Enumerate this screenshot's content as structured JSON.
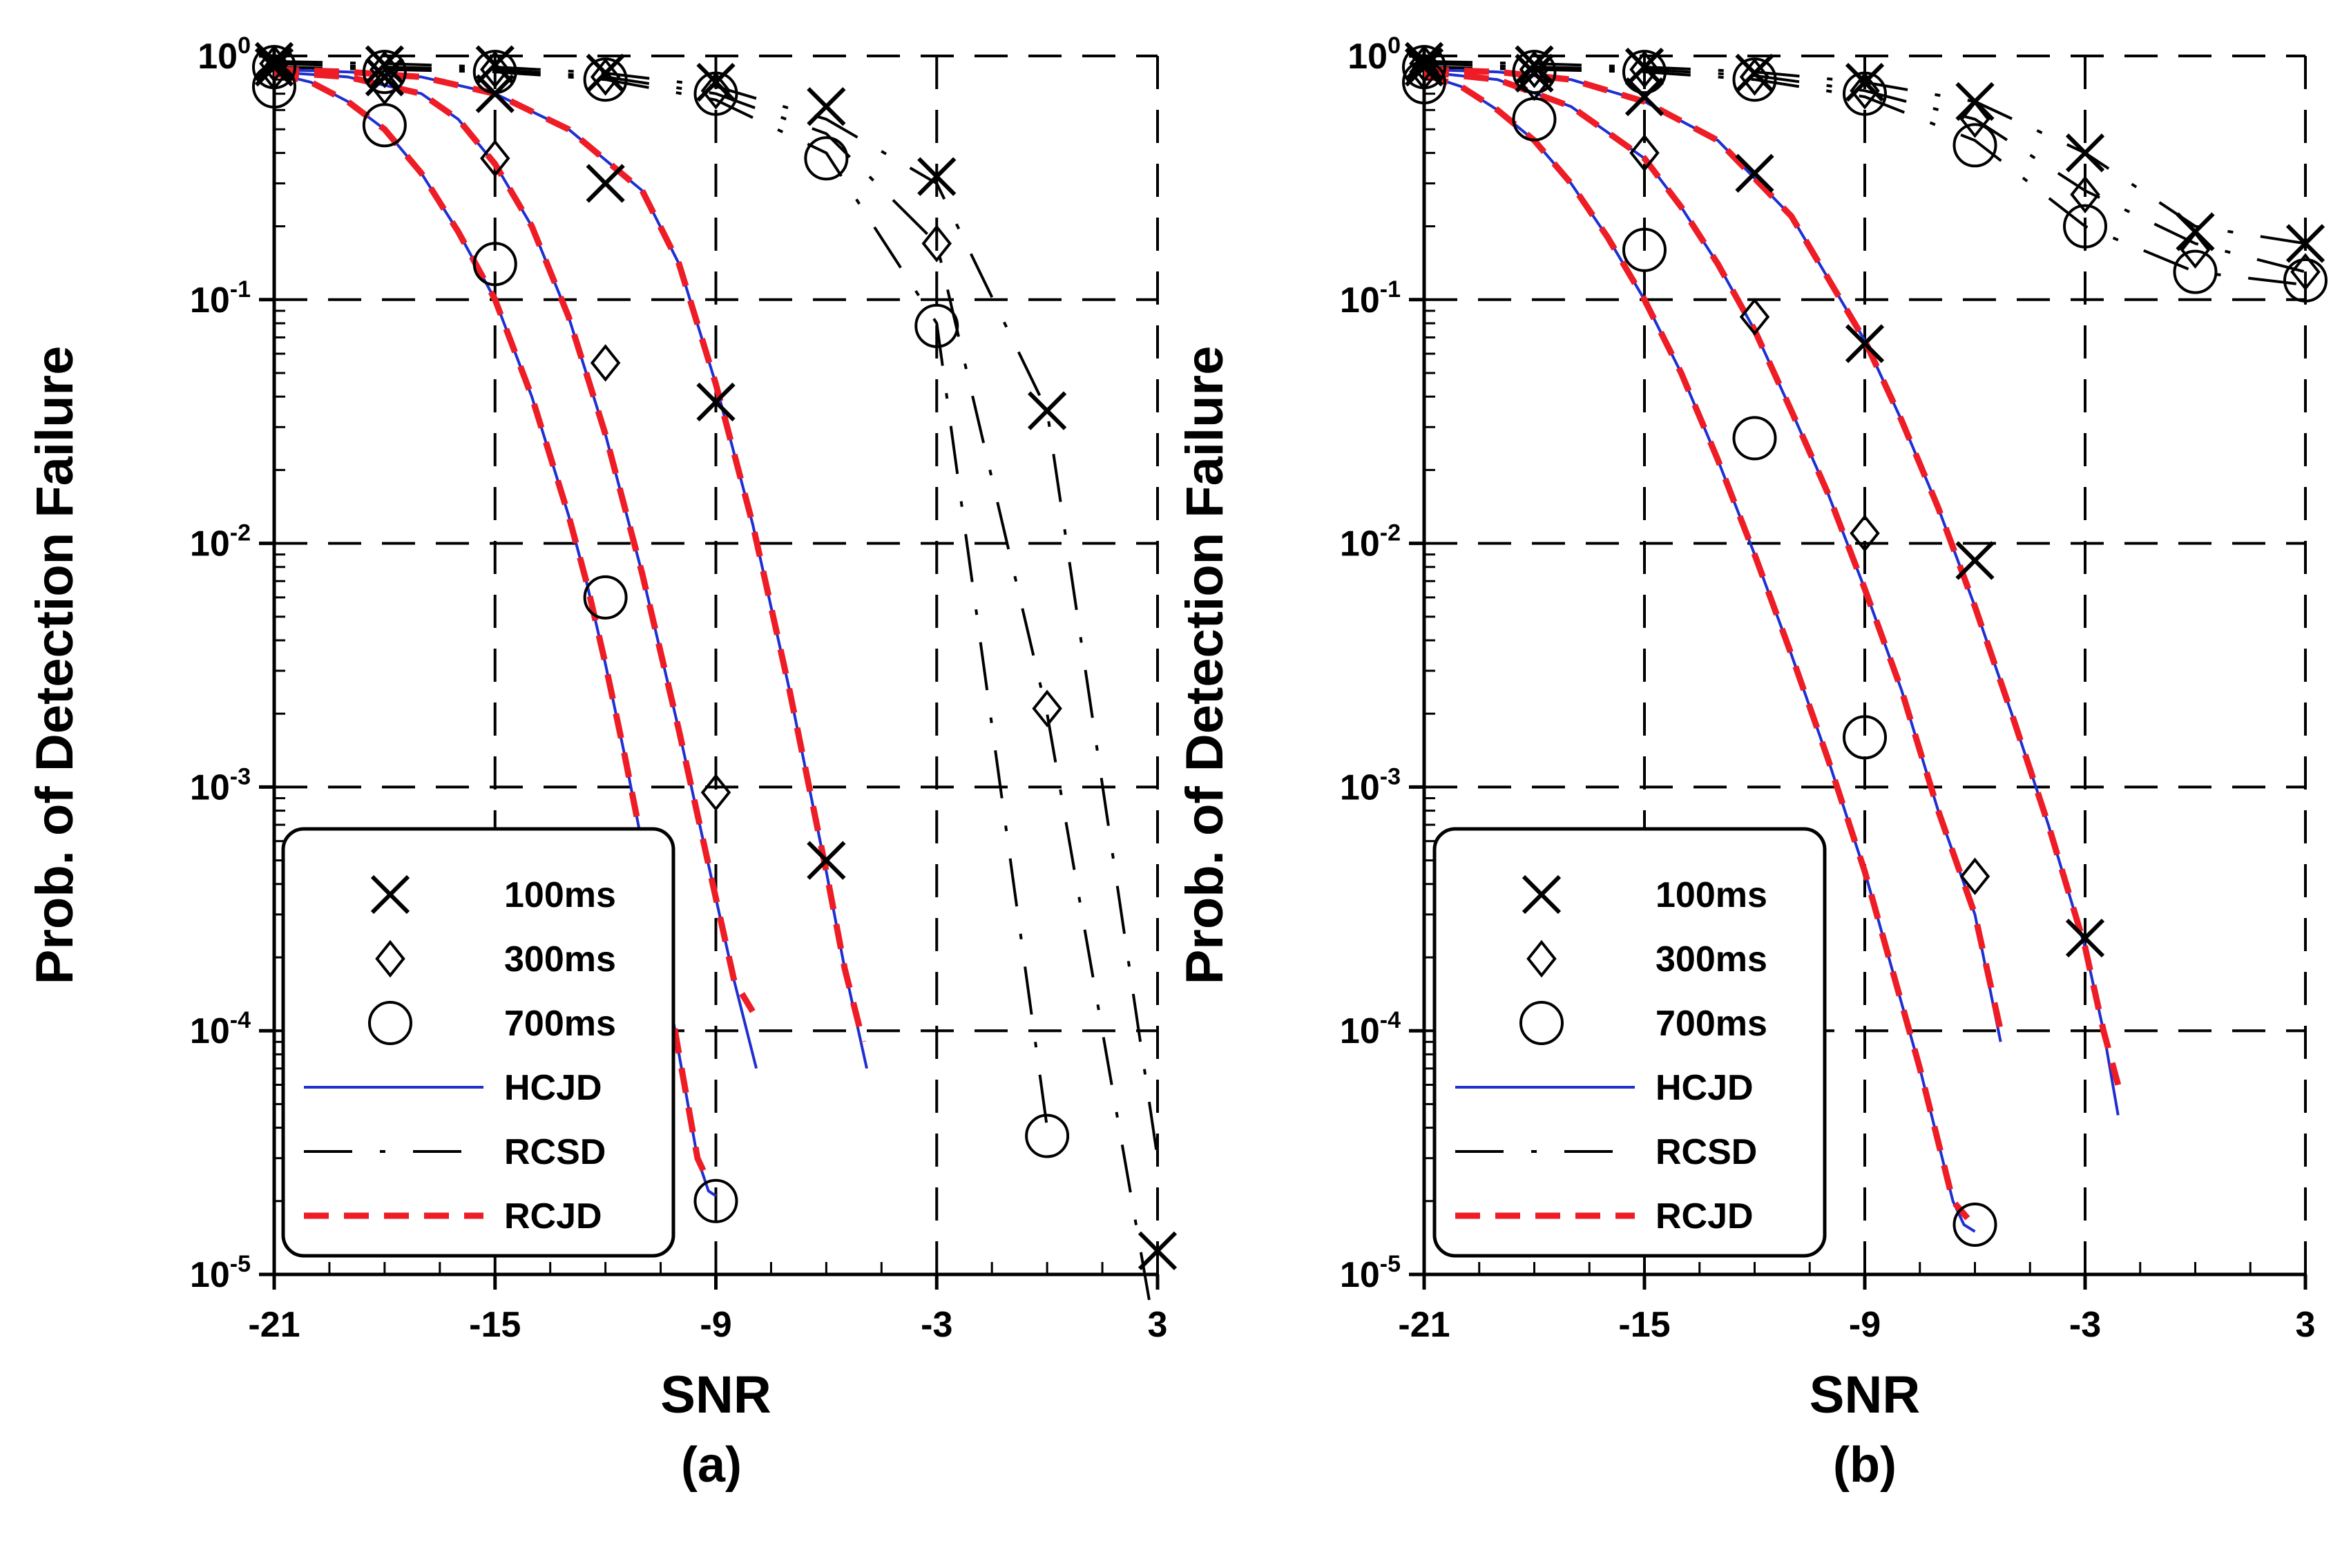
{
  "colors": {
    "hcjd": "#1f2fd0",
    "rcjd": "#ee1c25",
    "rcsd": "#000000",
    "grid": "#000000",
    "markers": "#000000"
  },
  "legend": {
    "markers": [
      {
        "label": "100ms",
        "icon": "cross-marker-icon"
      },
      {
        "label": "300ms",
        "icon": "diamond-marker-icon"
      },
      {
        "label": "700ms",
        "icon": "circle-marker-icon"
      }
    ],
    "lines": [
      {
        "label": "HCJD",
        "style": "solid-blue"
      },
      {
        "label": "RCSD",
        "style": "long-dash-dot-black"
      },
      {
        "label": "RCJD",
        "style": "dashed-red"
      }
    ]
  },
  "chart_data": [
    {
      "type": "line",
      "panel_label": "(a)",
      "xlabel": "SNR",
      "ylabel": "Prob. of Detection Failure",
      "xlim": [
        -21,
        3
      ],
      "ylim": [
        1e-05,
        1
      ],
      "y_scale": "log",
      "xticks": [
        -21,
        -15,
        -9,
        -3,
        3
      ],
      "yticks": [
        {
          "base": "10",
          "exp": "0"
        },
        {
          "base": "10",
          "exp": "-1"
        },
        {
          "base": "10",
          "exp": "-2"
        },
        {
          "base": "10",
          "exp": "-3"
        },
        {
          "base": "10",
          "exp": "-4"
        },
        {
          "base": "10",
          "exp": "-5"
        }
      ],
      "grid": true,
      "legend_position": "bottom-left",
      "series": [
        {
          "name": "HCJD",
          "duration": "100ms",
          "x": [
            -21,
            -19,
            -17,
            -15,
            -13,
            -11,
            -10,
            -9,
            -8,
            -7,
            -6,
            -5.5,
            -4.9
          ],
          "y": [
            0.88,
            0.86,
            0.82,
            0.7,
            0.5,
            0.28,
            0.14,
            0.045,
            0.012,
            0.0025,
            0.00045,
            0.00018,
            7e-05
          ]
        },
        {
          "name": "RCJD",
          "duration": "100ms",
          "x": [
            -21,
            -19,
            -17,
            -15,
            -13,
            -11,
            -10,
            -9,
            -8,
            -7,
            -6,
            -5.5,
            -5.0
          ],
          "y": [
            0.88,
            0.86,
            0.82,
            0.7,
            0.5,
            0.28,
            0.14,
            0.045,
            0.012,
            0.0025,
            0.00045,
            0.00018,
            9e-05
          ]
        },
        {
          "name": "HCJD",
          "duration": "300ms",
          "x": [
            -21,
            -19,
            -17,
            -16,
            -15,
            -14,
            -13,
            -12,
            -11,
            -10,
            -9,
            -8.5,
            -7.9
          ],
          "y": [
            0.86,
            0.82,
            0.7,
            0.55,
            0.36,
            0.2,
            0.085,
            0.028,
            0.0075,
            0.0017,
            0.00035,
            0.00016,
            7e-05
          ]
        },
        {
          "name": "RCJD",
          "duration": "300ms",
          "x": [
            -21,
            -19,
            -17,
            -16,
            -15,
            -14,
            -13,
            -12,
            -11,
            -10,
            -9,
            -8.5,
            -8.0
          ],
          "y": [
            0.86,
            0.82,
            0.7,
            0.55,
            0.36,
            0.2,
            0.085,
            0.028,
            0.0075,
            0.0017,
            0.00035,
            0.00016,
            0.00012
          ]
        },
        {
          "name": "HCJD",
          "duration": "700ms",
          "x": [
            -21,
            -20,
            -19,
            -18,
            -17,
            -16,
            -15,
            -14,
            -13,
            -12.5,
            -12,
            -11.5,
            -11,
            -10.5,
            -10,
            -9.5,
            -9.2,
            -9.0
          ],
          "y": [
            0.85,
            0.78,
            0.65,
            0.5,
            0.33,
            0.19,
            0.1,
            0.04,
            0.013,
            0.0068,
            0.0032,
            0.0014,
            0.00058,
            0.00022,
            8e-05,
            3e-05,
            2.2e-05,
            2.1e-05
          ]
        },
        {
          "name": "RCJD",
          "duration": "700ms",
          "x": [
            -21,
            -20,
            -19,
            -18,
            -17,
            -16,
            -15,
            -14,
            -13,
            -12.5,
            -12,
            -11.5,
            -11,
            -10.5,
            -10,
            -9.5,
            -9.2
          ],
          "y": [
            0.85,
            0.78,
            0.65,
            0.5,
            0.33,
            0.19,
            0.1,
            0.04,
            0.013,
            0.0068,
            0.0032,
            0.0014,
            0.00058,
            0.00022,
            8e-05,
            3e-05,
            2.4e-05
          ]
        },
        {
          "name": "RCSD",
          "duration": "100ms",
          "x": [
            -21,
            -18,
            -15,
            -12,
            -9,
            -6,
            -3,
            0,
            3
          ],
          "y": [
            0.95,
            0.93,
            0.9,
            0.85,
            0.75,
            0.55,
            0.3,
            0.035,
            3e-05
          ]
        },
        {
          "name": "RCSD",
          "duration": "300ms",
          "x": [
            -21,
            -18,
            -15,
            -12,
            -9,
            -6,
            -3,
            0,
            3
          ],
          "y": [
            0.93,
            0.9,
            0.88,
            0.82,
            0.7,
            0.48,
            0.17,
            0.002,
            5e-06
          ]
        },
        {
          "name": "RCSD",
          "duration": "700ms",
          "x": [
            -21,
            -18,
            -15,
            -12,
            -9,
            -6,
            -3,
            0
          ],
          "y": [
            0.9,
            0.88,
            0.86,
            0.8,
            0.66,
            0.4,
            0.08,
            4e-05
          ]
        }
      ],
      "markers": [
        {
          "series": "100ms",
          "x": [
            -21,
            -18,
            -15,
            -12,
            -9,
            -6
          ],
          "y": [
            0.9,
            0.82,
            0.7,
            0.3,
            0.038,
            0.0005
          ]
        },
        {
          "series": "300ms",
          "x": [
            -21,
            -18,
            -15,
            -12,
            -9
          ],
          "y": [
            0.86,
            0.75,
            0.38,
            0.055,
            0.00095
          ]
        },
        {
          "series": "700ms",
          "x": [
            -21,
            -18,
            -15,
            -12,
            -9
          ],
          "y": [
            0.75,
            0.52,
            0.14,
            0.006,
            2e-05
          ]
        },
        {
          "series": "100ms",
          "x": [
            -21,
            -18,
            -15,
            -12,
            -9,
            -6,
            -3,
            0,
            3
          ],
          "y": [
            0.95,
            0.92,
            0.92,
            0.85,
            0.78,
            0.62,
            0.32,
            0.035,
            1.25e-05
          ]
        },
        {
          "series": "300ms",
          "x": [
            -21,
            -18,
            -15,
            -12,
            -9,
            -3,
            0
          ],
          "y": [
            0.93,
            0.88,
            0.88,
            0.82,
            0.72,
            0.17,
            0.0021
          ]
        },
        {
          "series": "700ms",
          "x": [
            -21,
            -18,
            -15,
            -12,
            -9,
            -6,
            -3,
            0
          ],
          "y": [
            0.9,
            0.86,
            0.86,
            0.8,
            0.7,
            0.38,
            0.078,
            3.7e-05
          ]
        }
      ]
    },
    {
      "type": "line",
      "panel_label": "(b)",
      "xlabel": "SNR",
      "ylabel": "Prob. of Detection Failure",
      "xlim": [
        -21,
        3
      ],
      "ylim": [
        1e-05,
        1
      ],
      "y_scale": "log",
      "xticks": [
        -21,
        -15,
        -9,
        -3,
        3
      ],
      "yticks": [
        {
          "base": "10",
          "exp": "0"
        },
        {
          "base": "10",
          "exp": "-1"
        },
        {
          "base": "10",
          "exp": "-2"
        },
        {
          "base": "10",
          "exp": "-3"
        },
        {
          "base": "10",
          "exp": "-4"
        },
        {
          "base": "10",
          "exp": "-5"
        }
      ],
      "grid": true,
      "legend_position": "bottom-left",
      "series": [
        {
          "name": "HCJD",
          "duration": "100ms",
          "x": [
            -21,
            -19,
            -17,
            -15,
            -13,
            -11,
            -9,
            -8,
            -7,
            -6,
            -5,
            -4,
            -3,
            -2.5,
            -2.1
          ],
          "y": [
            0.88,
            0.86,
            0.8,
            0.65,
            0.45,
            0.22,
            0.068,
            0.032,
            0.014,
            0.0055,
            0.002,
            0.0007,
            0.00022,
            0.0001,
            4.5e-05
          ]
        },
        {
          "name": "RCJD",
          "duration": "100ms",
          "x": [
            -21,
            -19,
            -17,
            -15,
            -13,
            -11,
            -9,
            -8,
            -7,
            -6,
            -5,
            -4,
            -3,
            -2.5,
            -2.1
          ],
          "y": [
            0.88,
            0.86,
            0.8,
            0.65,
            0.45,
            0.22,
            0.068,
            0.032,
            0.014,
            0.0055,
            0.002,
            0.0007,
            0.00022,
            0.0001,
            6e-05
          ]
        },
        {
          "name": "HCJD",
          "duration": "300ms",
          "x": [
            -21,
            -19,
            -17,
            -15,
            -14,
            -13,
            -12,
            -11,
            -10,
            -9,
            -8,
            -7,
            -6,
            -5.3
          ],
          "y": [
            0.86,
            0.8,
            0.62,
            0.38,
            0.24,
            0.14,
            0.075,
            0.035,
            0.016,
            0.0065,
            0.0025,
            0.0008,
            0.0003,
            9e-05
          ]
        },
        {
          "name": "RCJD",
          "duration": "300ms",
          "x": [
            -21,
            -19,
            -17,
            -15,
            -14,
            -13,
            -12,
            -11,
            -10,
            -9,
            -8,
            -7,
            -6,
            -5.3
          ],
          "y": [
            0.86,
            0.8,
            0.62,
            0.38,
            0.24,
            0.14,
            0.075,
            0.035,
            0.016,
            0.0065,
            0.0025,
            0.0008,
            0.0003,
            0.0001
          ]
        },
        {
          "name": "HCJD",
          "duration": "700ms",
          "x": [
            -21,
            -20,
            -19,
            -18,
            -17,
            -16,
            -15,
            -14,
            -13,
            -12,
            -11,
            -10,
            -9,
            -8,
            -7.5,
            -7,
            -6.6,
            -6.3,
            -6.0
          ],
          "y": [
            0.84,
            0.75,
            0.6,
            0.45,
            0.3,
            0.18,
            0.1,
            0.05,
            0.022,
            0.009,
            0.0035,
            0.0013,
            0.00045,
            0.00013,
            7e-05,
            3.5e-05,
            2e-05,
            1.6e-05,
            1.5e-05
          ]
        },
        {
          "name": "RCJD",
          "duration": "700ms",
          "x": [
            -21,
            -20,
            -19,
            -18,
            -17,
            -16,
            -15,
            -14,
            -13,
            -12,
            -11,
            -10,
            -9,
            -8,
            -7.5,
            -7,
            -6.6,
            -6.2
          ],
          "y": [
            0.84,
            0.75,
            0.6,
            0.45,
            0.3,
            0.18,
            0.1,
            0.05,
            0.022,
            0.009,
            0.0035,
            0.0013,
            0.00045,
            0.00013,
            7e-05,
            3.5e-05,
            2e-05,
            1.7e-05
          ]
        },
        {
          "name": "RCSD",
          "duration": "100ms",
          "x": [
            -21,
            -18,
            -15,
            -12,
            -9,
            -6,
            -3,
            0,
            3
          ],
          "y": [
            0.95,
            0.93,
            0.9,
            0.86,
            0.78,
            0.65,
            0.4,
            0.2,
            0.17
          ]
        },
        {
          "name": "RCSD",
          "duration": "300ms",
          "x": [
            -21,
            -18,
            -15,
            -12,
            -9,
            -6,
            -3,
            0,
            3
          ],
          "y": [
            0.93,
            0.9,
            0.88,
            0.83,
            0.72,
            0.55,
            0.28,
            0.17,
            0.13
          ]
        },
        {
          "name": "RCSD",
          "duration": "700ms",
          "x": [
            -21,
            -18,
            -15,
            -12,
            -9,
            -6,
            -3,
            0,
            3
          ],
          "y": [
            0.9,
            0.88,
            0.86,
            0.8,
            0.68,
            0.45,
            0.2,
            0.13,
            0.115
          ]
        }
      ],
      "markers": [
        {
          "series": "100ms",
          "x": [
            -21,
            -18,
            -15,
            -12,
            -9,
            -6,
            -3
          ],
          "y": [
            0.9,
            0.85,
            0.68,
            0.33,
            0.066,
            0.0085,
            0.00024
          ]
        },
        {
          "series": "300ms",
          "x": [
            -21,
            -18,
            -15,
            -12,
            -9,
            -6
          ],
          "y": [
            0.86,
            0.78,
            0.4,
            0.085,
            0.011,
            0.00043
          ]
        },
        {
          "series": "700ms",
          "x": [
            -21,
            -18,
            -15,
            -12,
            -9,
            -6
          ],
          "y": [
            0.78,
            0.55,
            0.16,
            0.027,
            0.0016,
            1.6e-05
          ]
        },
        {
          "series": "100ms",
          "x": [
            -21,
            -18,
            -15,
            -12,
            -9,
            -6,
            -3,
            0,
            3
          ],
          "y": [
            0.95,
            0.92,
            0.9,
            0.85,
            0.78,
            0.65,
            0.4,
            0.19,
            0.17
          ]
        },
        {
          "series": "300ms",
          "x": [
            -21,
            -18,
            -15,
            -12,
            -9,
            -6,
            -3,
            0,
            3
          ],
          "y": [
            0.93,
            0.88,
            0.88,
            0.82,
            0.72,
            0.55,
            0.27,
            0.16,
            0.13
          ]
        },
        {
          "series": "700ms",
          "x": [
            -21,
            -18,
            -15,
            -12,
            -9,
            -6,
            -3,
            0,
            3
          ],
          "y": [
            0.9,
            0.86,
            0.86,
            0.8,
            0.7,
            0.43,
            0.2,
            0.13,
            0.12
          ]
        }
      ]
    }
  ]
}
